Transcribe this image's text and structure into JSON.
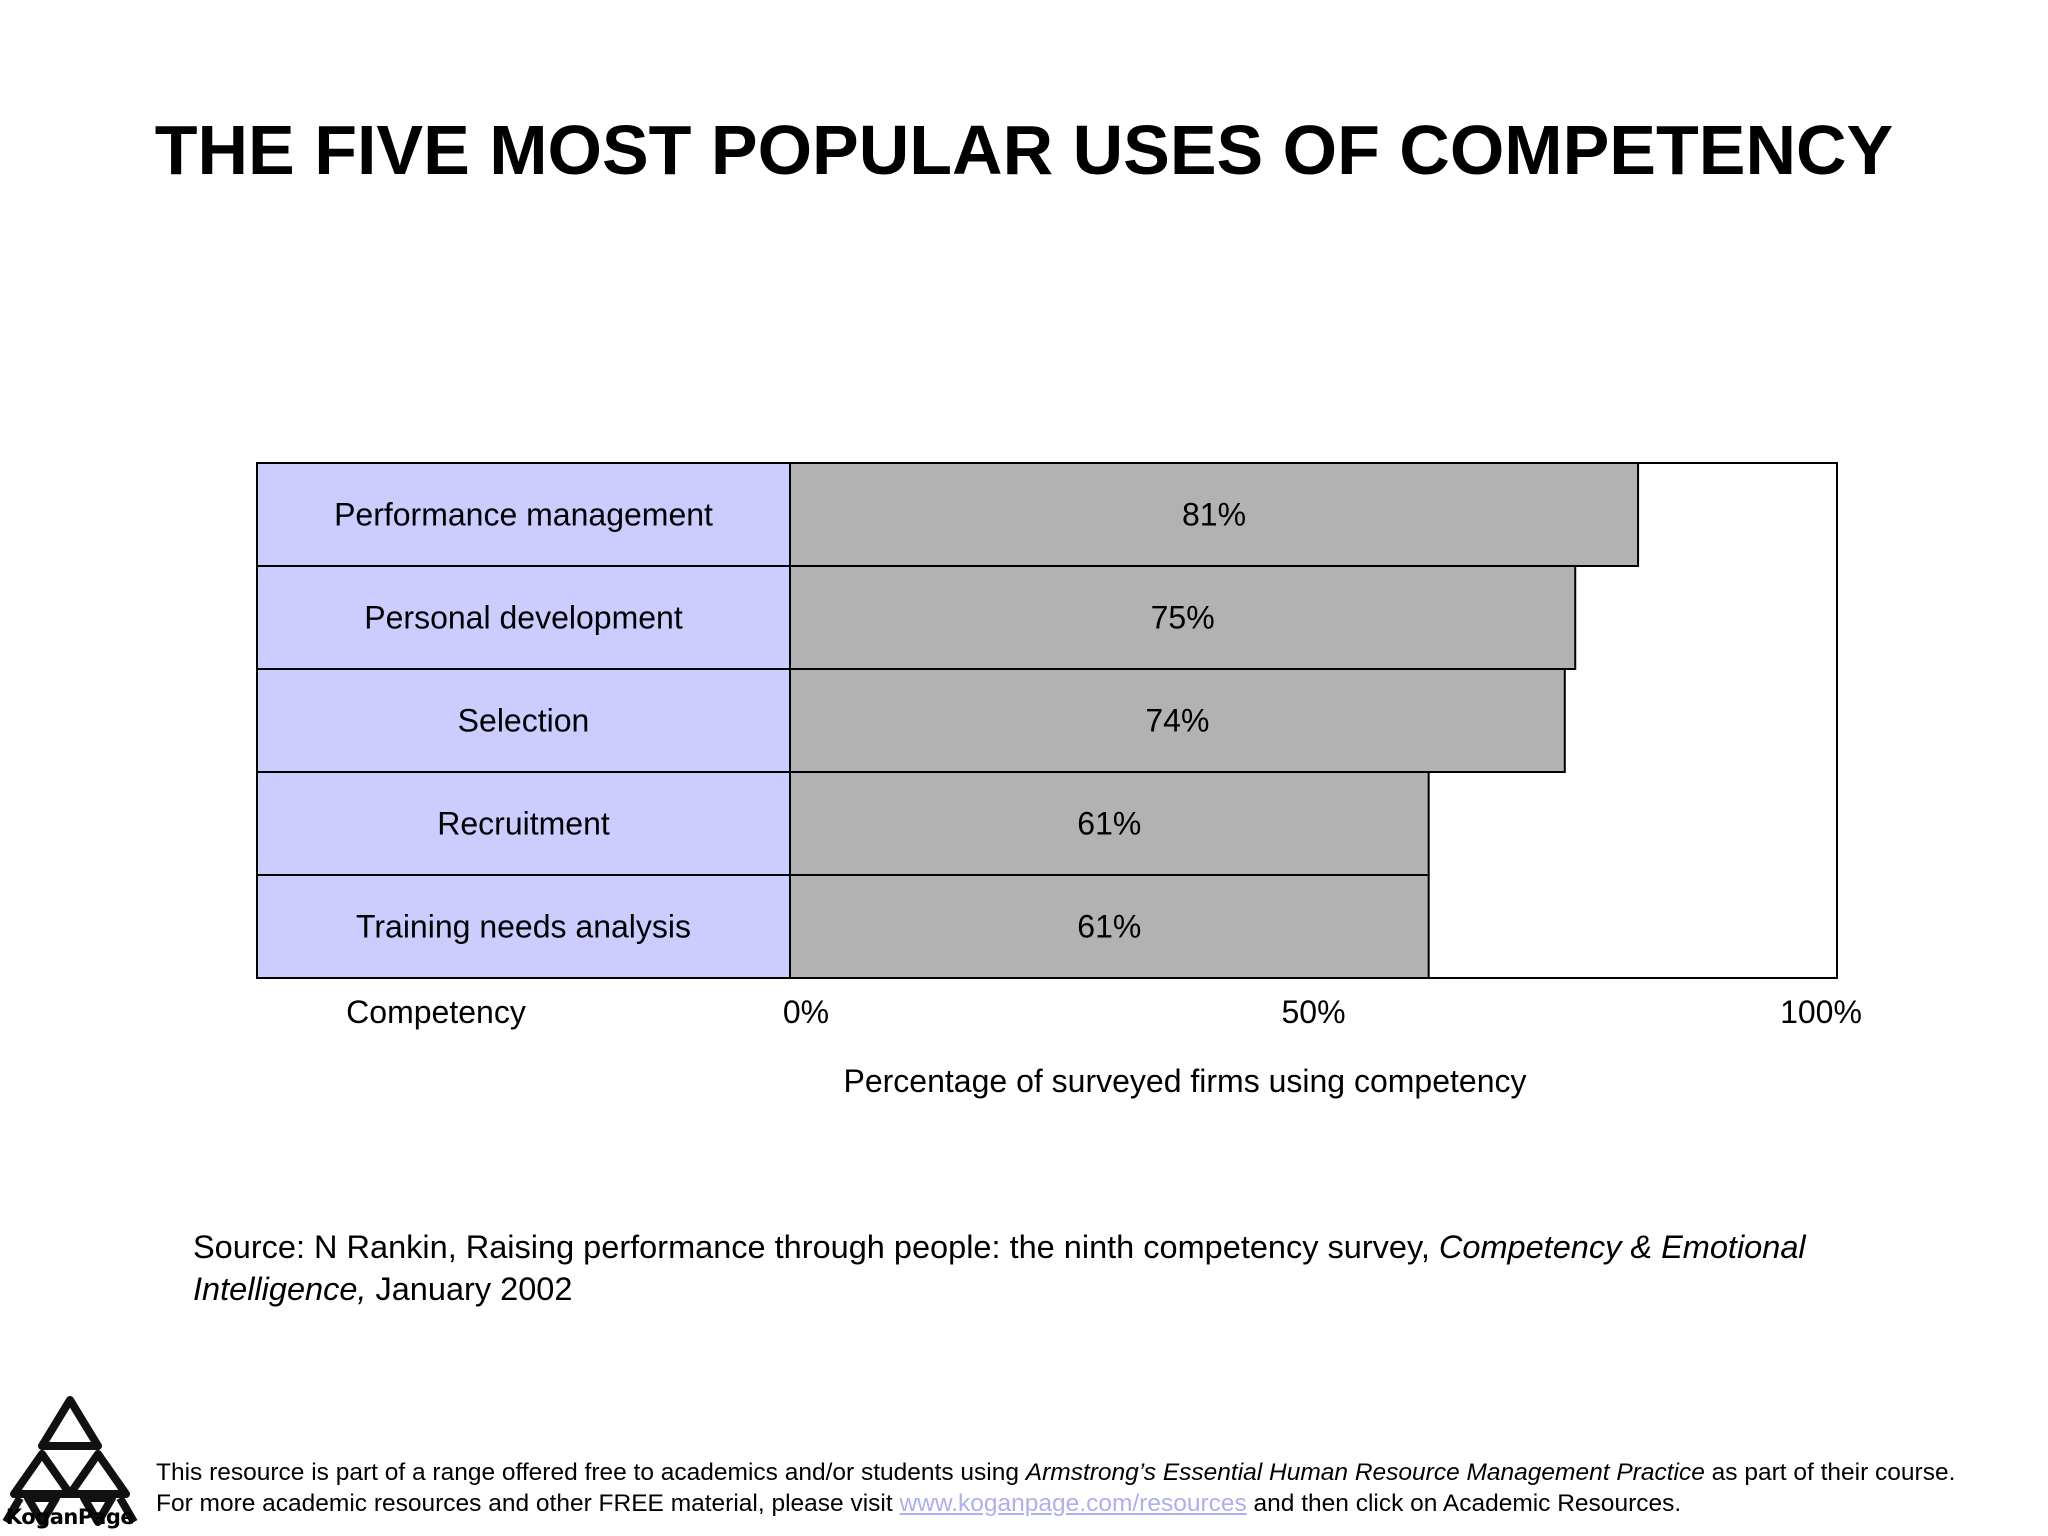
{
  "page": {
    "title": "THE FIVE MOST POPULAR USES OF COMPETENCY",
    "source": {
      "prefix": "Source: N Rankin, Raising performance through people: the ninth competency survey, ",
      "journal": "Competency & Emotional Intelligence,",
      "suffix": " January 2002"
    },
    "footer": {
      "line1_prefix": "This resource is part of a range offered free to academics and/or students using ",
      "line1_book": "Armstrong’s Essential Human Resource Management Practice",
      "line1_suffix": " as part of their course.",
      "line2_prefix": "For more academic resources and other FREE material, please visit ",
      "line2_link": "www.koganpage.com/resources",
      "line2_suffix": " and then click on Academic Resources."
    },
    "logo": {
      "icon": "kogan-page-triangles-logo",
      "text": "KoganPage"
    }
  },
  "chart_data": {
    "type": "bar",
    "orientation": "horizontal",
    "categories": [
      "Performance management",
      "Personal development",
      "Selection",
      "Recruitment",
      "Training needs analysis"
    ],
    "values": [
      81,
      75,
      74,
      61,
      61
    ],
    "value_labels": [
      "81%",
      "75%",
      "74%",
      "61%",
      "61%"
    ],
    "category_axis_label": "Competency",
    "xlabel": "Percentage of surveyed firms using competency",
    "x_ticks": [
      "0%",
      "50%",
      "100%"
    ],
    "xlim": [
      0,
      100
    ],
    "colors": {
      "category_cell": "#ccccff",
      "bar": "#b2b2b2",
      "border": "#000000"
    }
  }
}
